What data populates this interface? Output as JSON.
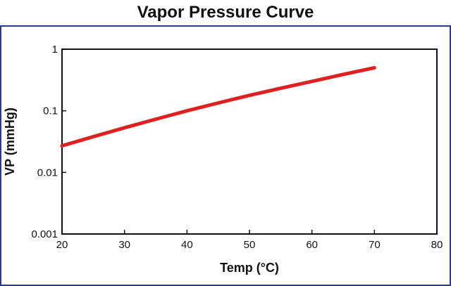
{
  "chart_data": {
    "type": "line",
    "title": "Vapor Pressure Curve",
    "xlabel": "Temp (°C)",
    "ylabel": "VP (mmHg)",
    "x_scale": "linear",
    "y_scale": "log",
    "xlim": [
      20,
      80
    ],
    "ylim": [
      0.001,
      1
    ],
    "x_ticks": [
      20,
      30,
      40,
      50,
      60,
      70,
      80
    ],
    "x_tick_labels": [
      "20",
      "30",
      "40",
      "50",
      "60",
      "70",
      "80"
    ],
    "y_ticks": [
      0.001,
      0.01,
      0.1,
      1
    ],
    "y_tick_labels": [
      "0.001",
      "0.01",
      "0.1",
      "1"
    ],
    "grid": false,
    "legend": "none",
    "series": [
      {
        "color": "#e02020",
        "x": [
          20,
          25,
          30,
          35,
          40,
          45,
          50,
          55,
          60,
          65,
          70
        ],
        "y": [
          0.027,
          0.038,
          0.053,
          0.073,
          0.1,
          0.134,
          0.178,
          0.232,
          0.3,
          0.39,
          0.5
        ]
      }
    ]
  }
}
